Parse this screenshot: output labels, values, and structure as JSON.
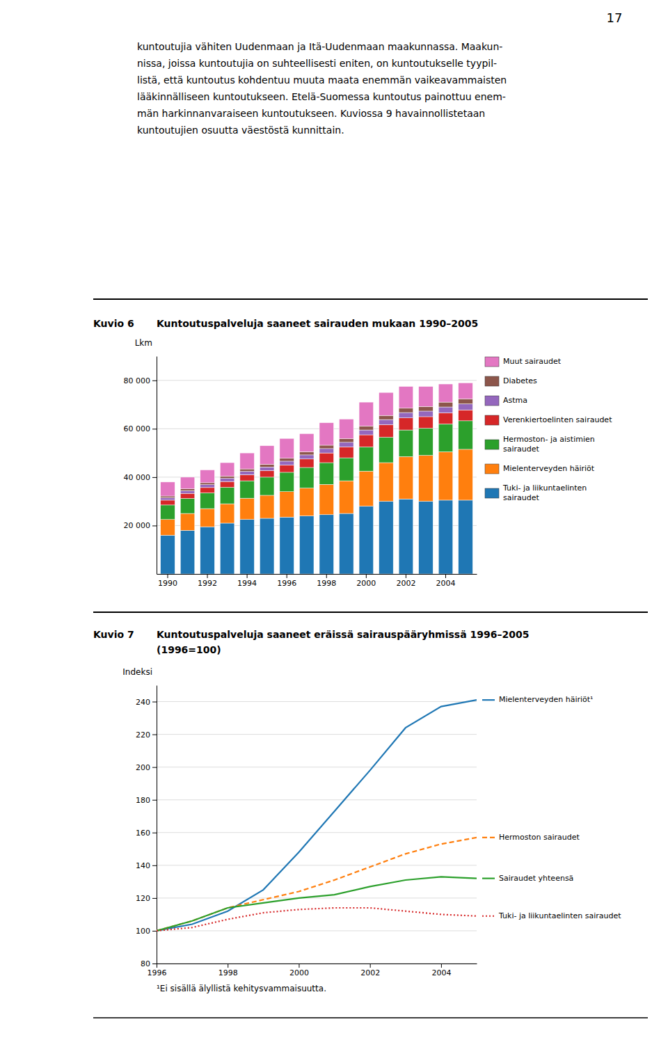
{
  "page_number": "17",
  "intro_text": "kuntoutujia vähiten Uudenmaan ja Itä-Uudenmaan maakunnassa. Maakun-\nnissa, joissa kuntoutujia on suhteellisesti eniten, on kuntoutukselle tyypil-\nlistä, että kuntoutus kohdentuu muuta maata enemmän vaikeavammaisten\nlääkinnälliseen kuntoutukseen. Etelä-Suomessa kuntoutus painottuu enem-\nmän harkinnanvaraiseen kuntoutukseen. Kuviossa 9 havainnollistetaan\nkuntoutujien osuutta väestöstä kunnittain.",
  "chart_data": [
    {
      "type": "bar",
      "stacked": true,
      "grid": true,
      "legend": "right",
      "title": "Kuntoutuspalveluja saaneet sairauden mukaan 1990–2005",
      "ylabel": "Lkm",
      "annotations": [
        "Kuvio 6"
      ],
      "categories": [
        1990,
        null,
        1992,
        null,
        1994,
        null,
        1996,
        null,
        1998,
        null,
        2000,
        null,
        2002,
        null,
        2004,
        null
      ],
      "ylim": [
        0,
        90000
      ],
      "yticks": [
        {
          "value": 20000,
          "label": "20 000"
        },
        {
          "value": 40000,
          "label": "40 000"
        },
        {
          "value": 60000,
          "label": "60 000"
        },
        {
          "value": 80000,
          "label": "80 000"
        }
      ],
      "series": [
        {
          "name": "Tuki- ja liikuntaelinten\nsairaudet",
          "values": [
            16000,
            18000,
            19500,
            21000,
            22500,
            23000,
            23500,
            24000,
            24500,
            25000,
            28000,
            30000,
            31000,
            30000,
            30500,
            30500
          ]
        },
        {
          "name": "Mielenterveyden häiriöt",
          "values": [
            6500,
            7000,
            7500,
            8000,
            8800,
            9500,
            10500,
            11500,
            12500,
            13500,
            14500,
            16000,
            17500,
            19000,
            20000,
            21000
          ]
        },
        {
          "name": "Hermoston- ja aistimien\nsairaudet",
          "values": [
            6000,
            6200,
            6500,
            6800,
            7200,
            7500,
            8000,
            8500,
            9000,
            9500,
            10000,
            10500,
            11000,
            11200,
            11500,
            11800
          ]
        },
        {
          "name": "Verenkiertoelinten sairaudet",
          "values": [
            2000,
            2100,
            2200,
            2400,
            2500,
            2700,
            3000,
            3500,
            4000,
            4500,
            5000,
            5200,
            5000,
            4800,
            4600,
            4500
          ]
        },
        {
          "name": "Astma",
          "values": [
            1000,
            1100,
            1200,
            1300,
            1400,
            1500,
            1600,
            1700,
            1800,
            1900,
            2000,
            2100,
            2200,
            2300,
            2400,
            2500
          ]
        },
        {
          "name": "Diabetes",
          "values": [
            700,
            750,
            800,
            900,
            1000,
            1100,
            1200,
            1300,
            1400,
            1500,
            1600,
            1700,
            1800,
            1900,
            2000,
            2100
          ]
        },
        {
          "name": "Muut sairaudet",
          "values": [
            5800,
            4850,
            5300,
            5600,
            6600,
            7700,
            8200,
            7500,
            9300,
            8100,
            9900,
            9500,
            9000,
            8300,
            7500,
            6600
          ]
        }
      ]
    },
    {
      "type": "line",
      "grid": true,
      "legend": "right",
      "title": "Kuntoutuspalveluja saaneet eräissä sairauspääryhmissä 1996–2005",
      "subtitle": "(1996=100)",
      "ylabel": "Indeksi",
      "annotations": [
        "Kuvio 7",
        "¹Ei sisällä älyllistä kehitysvammaisuutta."
      ],
      "x": [
        1996,
        1997,
        1998,
        1999,
        2000,
        2001,
        2002,
        2003,
        2004,
        2005
      ],
      "xlim": [
        1996,
        2005
      ],
      "xticks": [
        1996,
        1998,
        2000,
        2002,
        2004
      ],
      "ylim": [
        80,
        250
      ],
      "yticks": [
        80,
        100,
        120,
        140,
        160,
        180,
        200,
        220,
        240
      ],
      "series": [
        {
          "name": "Mielenterveyden häiriöt¹",
          "line_style": "solid",
          "values": [
            100,
            104,
            112,
            125,
            148,
            173,
            198,
            224,
            237,
            241
          ]
        },
        {
          "name": "Hermoston sairaudet",
          "line_style": "dashed",
          "values": [
            100,
            106,
            114,
            119,
            124,
            131,
            139,
            147,
            153,
            157
          ]
        },
        {
          "name": "Sairaudet yhteensä",
          "line_style": "solid",
          "values": [
            100,
            106,
            114,
            117,
            120,
            122,
            127,
            131,
            133,
            132
          ]
        },
        {
          "name": "Tuki- ja liikuntaelinten sairaudet",
          "line_style": "dotted",
          "values": [
            100,
            102,
            107,
            111,
            113,
            114,
            114,
            112,
            110,
            109
          ]
        }
      ]
    }
  ]
}
